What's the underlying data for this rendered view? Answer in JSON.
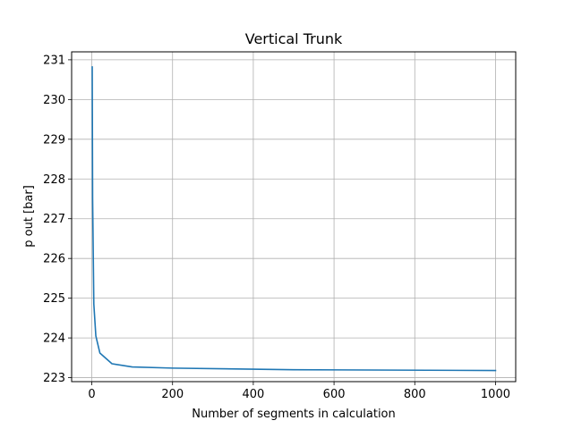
{
  "chart_data": {
    "type": "line",
    "title": "Vertical Trunk",
    "xlabel": "Number of segments in calculation",
    "ylabel": "p out [bar]",
    "xlim": [
      -50,
      1050
    ],
    "ylim": [
      222.9,
      231.2
    ],
    "xticks": [
      0,
      200,
      400,
      600,
      800,
      1000
    ],
    "yticks": [
      223,
      224,
      225,
      226,
      227,
      228,
      229,
      230,
      231
    ],
    "grid": true,
    "series": [
      {
        "color": "#1f77b4",
        "x": [
          1,
          2,
          5,
          10,
          20,
          50,
          100,
          200,
          500,
          1000
        ],
        "y": [
          230.82,
          227.5,
          224.85,
          224.05,
          223.62,
          223.35,
          223.27,
          223.24,
          223.2,
          223.18
        ]
      }
    ]
  }
}
